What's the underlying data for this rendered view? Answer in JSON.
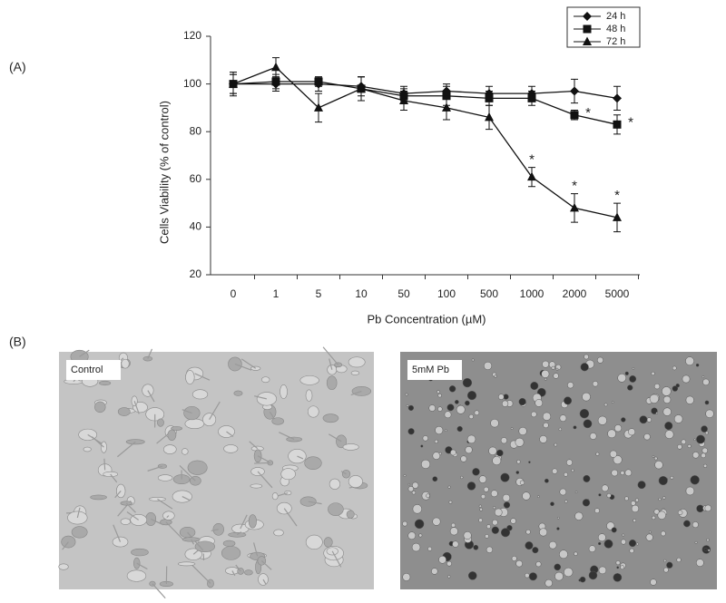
{
  "chart_data": {
    "type": "line",
    "x_label": "Pb Concentration (µM)",
    "y_label": "Cells Viability (% of control)",
    "categories": [
      "0",
      "1",
      "5",
      "10",
      "50",
      "100",
      "500",
      "1000",
      "2000",
      "5000"
    ],
    "ylim": [
      20,
      120
    ],
    "yticks": [
      20,
      40,
      60,
      80,
      100,
      120
    ],
    "legend": "top-right",
    "series": [
      {
        "name": "24 h",
        "color": "#111111",
        "marker": "diamond",
        "values": [
          100,
          100,
          100,
          99,
          96,
          97,
          96,
          96,
          97,
          94
        ],
        "errors": [
          5,
          3,
          3,
          4,
          3,
          3,
          3,
          3,
          5,
          5
        ]
      },
      {
        "name": "48 h",
        "color": "#111111",
        "marker": "square",
        "values": [
          100,
          101,
          101,
          98,
          95,
          95,
          94,
          94,
          87,
          83
        ],
        "errors": [
          4,
          3,
          2,
          5,
          3,
          4,
          3,
          3,
          2,
          4
        ]
      },
      {
        "name": "72 h",
        "color": "#111111",
        "marker": "triangle",
        "values": [
          100,
          107,
          90,
          98,
          93,
          90,
          86,
          61,
          48,
          44
        ],
        "errors": [
          4,
          4,
          6,
          5,
          4,
          5,
          5,
          4,
          6,
          6
        ]
      }
    ],
    "annotations": [
      {
        "text": "*",
        "series": "48 h",
        "category": "2000"
      },
      {
        "text": "*",
        "series": "48 h",
        "category": "5000"
      },
      {
        "text": "*",
        "series": "72 h",
        "category": "1000"
      },
      {
        "text": "*",
        "series": "72 h",
        "category": "2000"
      },
      {
        "text": "*",
        "series": "72 h",
        "category": "5000"
      }
    ]
  },
  "panels": {
    "a_label": "(A)",
    "b_label": "(B)",
    "images": [
      {
        "label": "Control"
      },
      {
        "label": "5mM Pb"
      }
    ]
  }
}
